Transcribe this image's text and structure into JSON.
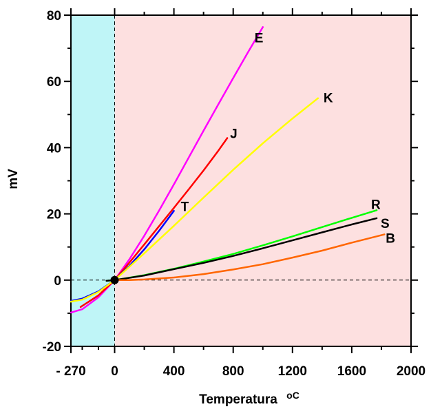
{
  "chart_data": {
    "type": "line",
    "title": "",
    "xlabel": "Temperatura",
    "xlabel_unit": "oC",
    "ylabel": "mV",
    "xlim": [
      -270,
      2000
    ],
    "ylim": [
      -20,
      80
    ],
    "x_ticks": [
      {
        "value": -270,
        "label": "- 270"
      },
      {
        "value": 0,
        "label": "0"
      },
      {
        "value": 400,
        "label": "400"
      },
      {
        "value": 800,
        "label": "800"
      },
      {
        "value": 1200,
        "label": "1200"
      },
      {
        "value": 1600,
        "label": "1600"
      },
      {
        "value": 2000,
        "label": "2000"
      }
    ],
    "y_ticks": [
      {
        "value": -20,
        "label": "-20"
      },
      {
        "value": 0,
        "label": "0"
      },
      {
        "value": 20,
        "label": "20"
      },
      {
        "value": 40,
        "label": "40"
      },
      {
        "value": 60,
        "label": "60"
      },
      {
        "value": 80,
        "label": "80"
      }
    ],
    "regions": [
      {
        "from": -270,
        "to": 0,
        "color": "#bff5f7"
      },
      {
        "from": 0,
        "to": 2000,
        "color": "#fde0e0"
      }
    ],
    "reference_lines": [
      {
        "axis": "x",
        "value": 0,
        "style": "dashed"
      },
      {
        "axis": "y",
        "value": 0,
        "style": "dashed"
      }
    ],
    "origin_marker": {
      "x": 0,
      "y": 0
    },
    "grid": false,
    "series": [
      {
        "name": "E",
        "color": "#ff00ff",
        "x": [
          -270,
          -200,
          -100,
          0,
          100,
          200,
          300,
          400,
          500,
          600,
          700,
          800,
          900,
          1000
        ],
        "y": [
          -9.8,
          -8.8,
          -5.2,
          0,
          6.3,
          13.4,
          21.0,
          28.9,
          37.0,
          45.1,
          53.1,
          61.0,
          68.8,
          76.4
        ]
      },
      {
        "name": "J",
        "color": "#ff0000",
        "x": [
          -210,
          -100,
          0,
          100,
          200,
          300,
          400,
          500,
          600,
          700,
          760
        ],
        "y": [
          -8.1,
          -4.6,
          0,
          5.3,
          10.8,
          16.3,
          21.8,
          27.4,
          33.1,
          39.1,
          42.9
        ]
      },
      {
        "name": "T",
        "color": "#0000ff",
        "x": [
          -270,
          -200,
          -100,
          0,
          100,
          200,
          300,
          400
        ],
        "y": [
          -6.3,
          -5.6,
          -3.4,
          0,
          4.3,
          9.3,
          14.9,
          20.9
        ]
      },
      {
        "name": "K",
        "color": "#ffff00",
        "x": [
          -270,
          -200,
          -100,
          0,
          200,
          400,
          600,
          800,
          1000,
          1200,
          1372
        ],
        "y": [
          -6.5,
          -5.9,
          -3.6,
          0,
          8.1,
          16.4,
          24.9,
          33.3,
          41.3,
          48.8,
          54.9
        ]
      },
      {
        "name": "R",
        "color": "#00ff00",
        "x": [
          -50,
          0,
          200,
          400,
          600,
          800,
          1000,
          1200,
          1400,
          1600,
          1768
        ],
        "y": [
          -0.2,
          0,
          1.5,
          3.4,
          5.6,
          7.9,
          10.5,
          13.2,
          16.0,
          18.8,
          21.1
        ]
      },
      {
        "name": "S",
        "color": "#000000",
        "x": [
          -50,
          0,
          200,
          400,
          600,
          800,
          1000,
          1200,
          1400,
          1600,
          1768
        ],
        "y": [
          -0.2,
          0,
          1.4,
          3.3,
          5.2,
          7.3,
          9.6,
          12.0,
          14.4,
          16.8,
          18.7
        ]
      },
      {
        "name": "B",
        "color": "#ff6600",
        "x": [
          0,
          100,
          200,
          400,
          600,
          800,
          1000,
          1200,
          1400,
          1600,
          1820
        ],
        "y": [
          0,
          0.03,
          0.18,
          0.8,
          1.8,
          3.2,
          4.8,
          6.8,
          8.9,
          11.3,
          13.8
        ]
      }
    ]
  }
}
